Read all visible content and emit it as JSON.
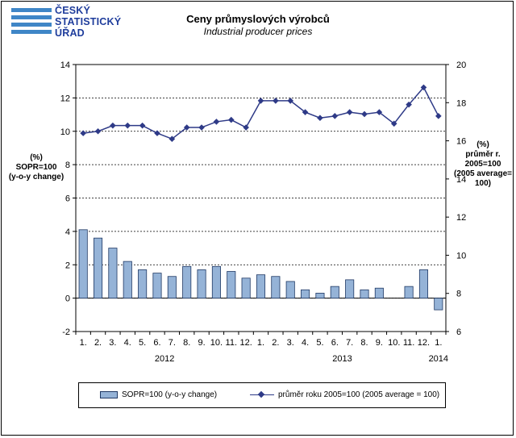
{
  "logo": {
    "line1": "ČESKÝ",
    "line2": "STATISTICKÝ",
    "line3": "ÚŘAD",
    "color": "#1f3d9c"
  },
  "chart_data": {
    "type": "bar",
    "title": "Ceny průmyslových výrobců",
    "subtitle": "Industrial producer prices",
    "ylabel_left": [
      "(%)",
      "SOPR=100",
      "(y-o-y change)"
    ],
    "ylabel_right": [
      "(%)",
      "průměr r.",
      "2005=100",
      "(2005 average=",
      "100)"
    ],
    "ylim_left": [
      -2,
      14
    ],
    "ylim_right": [
      6,
      20
    ],
    "yticks_left": [
      -2,
      0,
      2,
      4,
      6,
      8,
      10,
      12,
      14
    ],
    "yticks_right": [
      6,
      8,
      10,
      12,
      14,
      16,
      18,
      20
    ],
    "grid": "horizontal dashed",
    "categories": [
      "1.",
      "2.",
      "3.",
      "4.",
      "5.",
      "6.",
      "7.",
      "8.",
      "9.",
      "10.",
      "11.",
      "12.",
      "1.",
      "2.",
      "3.",
      "4.",
      "5.",
      "6.",
      "7.",
      "8.",
      "9.",
      "10.",
      "11.",
      "12.",
      "1."
    ],
    "years": [
      {
        "label": "2012",
        "start": 0,
        "end": 11
      },
      {
        "label": "2013",
        "start": 12,
        "end": 23
      },
      {
        "label": "2014",
        "start": 24,
        "end": 24
      }
    ],
    "series": [
      {
        "name": "SOPR=100 (y-o-y change)",
        "type": "bar",
        "axis": "left",
        "color": "#95b3d7",
        "values": [
          4.1,
          3.6,
          3.0,
          2.2,
          1.7,
          1.5,
          1.3,
          1.9,
          1.7,
          1.9,
          1.6,
          1.2,
          1.4,
          1.3,
          1.0,
          0.5,
          0.3,
          0.7,
          1.1,
          0.5,
          0.6,
          0.0,
          0.7,
          1.7,
          -0.7
        ]
      },
      {
        "name": "průměr roku 2005=100  (2005 average = 100)",
        "type": "line",
        "axis": "right",
        "color": "#2e3a87",
        "values": [
          16.4,
          16.5,
          16.8,
          16.8,
          16.8,
          16.4,
          16.1,
          16.7,
          16.7,
          17.0,
          17.1,
          16.7,
          18.1,
          18.1,
          18.1,
          17.5,
          17.2,
          17.3,
          17.5,
          17.4,
          17.5,
          16.9,
          17.9,
          18.8,
          17.3
        ]
      }
    ]
  }
}
